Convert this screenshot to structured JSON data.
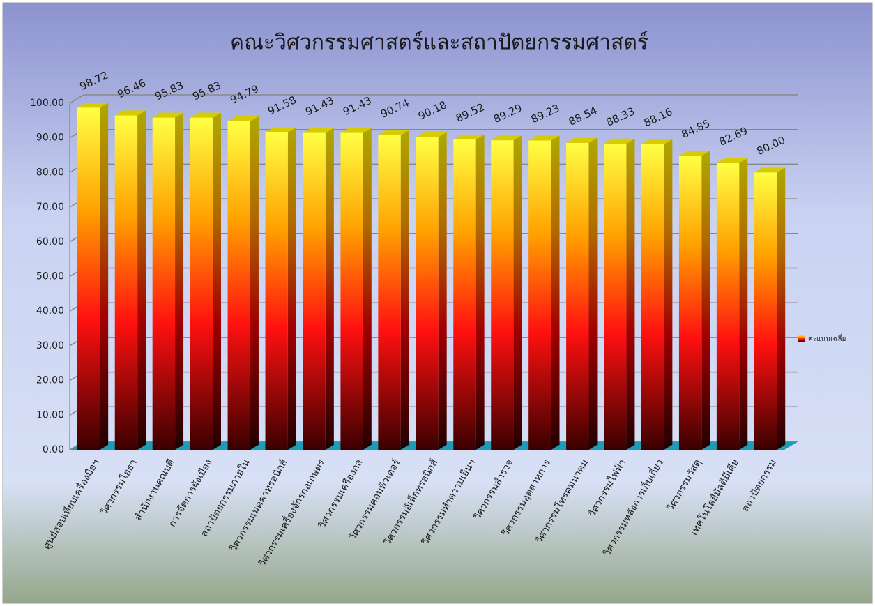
{
  "chart_data": {
    "type": "bar3d",
    "title": "คณะวิศวกรรมศาสตร์และสถาปัตยกรรมศาสตร์",
    "categories": [
      "ศูนย์สอบเทียบเครื่องมือฯ",
      "วิศวกรรมโยธา",
      "สำนักงานคณบดี",
      "การจัดการผังเมือง",
      "สถาปัตยกรรมภายใน",
      "วิศวกรรมเมคคาทรอนิกส์",
      "วิศวกรรมเครื่องจักรกลเกษตร",
      "วิศวกรรมเครื่องกล",
      "วิศวกรรมคอมพิวเตอร์",
      "วิศวกรรมอิเล็กทรอนิกส์",
      "วิศวกรรมทำความเย็นฯ",
      "วิศวกรรมสำรวจ",
      "วิศวกรรมอุตสาหการ",
      "วิศวกรรมโทรคมนาคม",
      "วิศวกรรมไฟฟ้า",
      "วิศวกรรมหลังการเก็บเกี่ยว",
      "วิศวกรรมวัสดุ",
      "เทคโนโลยีมัลติมีเดีย",
      "สถาปัตยกรรม"
    ],
    "series": [
      {
        "name": "คะแนนเฉลี่ย",
        "values": [
          98.72,
          96.46,
          95.83,
          95.83,
          94.79,
          91.58,
          91.43,
          91.43,
          90.74,
          90.18,
          89.52,
          89.29,
          89.23,
          88.54,
          88.33,
          88.16,
          84.85,
          82.69,
          80.0
        ],
        "value_labels": [
          "98.72",
          "96.46",
          "95.83",
          "95.83",
          "94.79",
          "91.58",
          "91.43",
          "91.43",
          "90.74",
          "90.18",
          "89.52",
          "89.29",
          "89.23",
          "88.54",
          "88.33",
          "88.16",
          "84.85",
          "82.69",
          "80.00"
        ]
      }
    ],
    "ylim": [
      0,
      100
    ],
    "yticks": [
      {
        "value": 0,
        "label": "0.00"
      },
      {
        "value": 10,
        "label": "10.00"
      },
      {
        "value": 20,
        "label": "20.00"
      },
      {
        "value": 30,
        "label": "30.00"
      },
      {
        "value": 40,
        "label": "40.00"
      },
      {
        "value": 50,
        "label": "50.00"
      },
      {
        "value": 60,
        "label": "60.00"
      },
      {
        "value": 70,
        "label": "70.00"
      },
      {
        "value": 80,
        "label": "80.00"
      },
      {
        "value": 90,
        "label": "90.00"
      },
      {
        "value": 100,
        "label": "100.00"
      }
    ],
    "grid": true,
    "legend": "right"
  }
}
